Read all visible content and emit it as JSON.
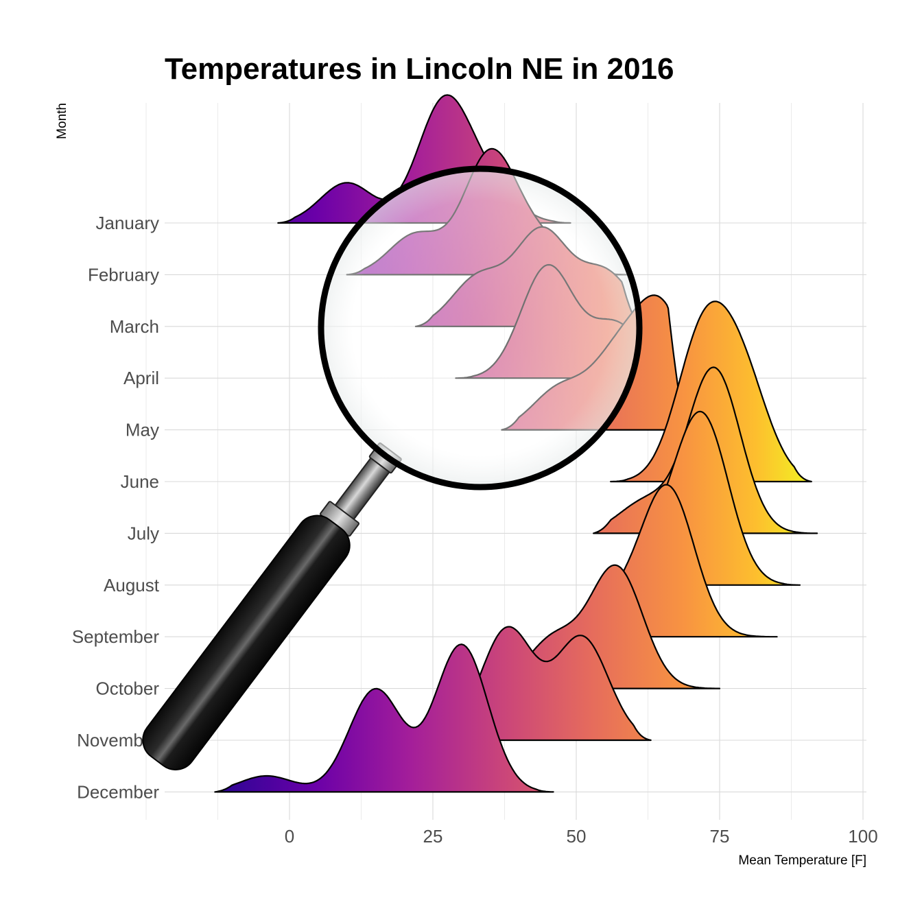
{
  "chart_data": {
    "type": "ridgeline",
    "title": "Temperatures in Lincoln NE in 2016",
    "xlabel": "Mean Temperature [F]",
    "ylabel": "Month",
    "xlim": [
      -25,
      100
    ],
    "x_ticks": [
      0,
      25,
      50,
      75,
      100
    ],
    "grid": true,
    "fill": "plasma gradient by temperature",
    "colors": {
      "low": "#2c0594",
      "mid": "#b12a90",
      "warm": "#e16462",
      "high": "#fcce25",
      "outline": "#000000"
    },
    "categories": [
      "January",
      "February",
      "March",
      "April",
      "May",
      "June",
      "July",
      "August",
      "September",
      "October",
      "November",
      "December"
    ],
    "series": [
      {
        "name": "January",
        "range": [
          -2,
          49
        ],
        "peaks": [
          {
            "x": 10,
            "h": 0.45
          },
          {
            "x": 27,
            "h": 1.35
          },
          {
            "x": 35,
            "h": 0.35
          }
        ]
      },
      {
        "name": "February",
        "range": [
          10,
          59
        ],
        "peaks": [
          {
            "x": 22,
            "h": 0.45
          },
          {
            "x": 35,
            "h": 1.35
          },
          {
            "x": 44,
            "h": 0.35
          }
        ]
      },
      {
        "name": "March",
        "range": [
          22,
          61
        ],
        "peaks": [
          {
            "x": 33,
            "h": 0.55
          },
          {
            "x": 44,
            "h": 1.05
          },
          {
            "x": 55,
            "h": 0.6
          }
        ]
      },
      {
        "name": "April",
        "range": [
          29,
          62
        ],
        "peaks": [
          {
            "x": 45,
            "h": 1.25
          },
          {
            "x": 57,
            "h": 0.6
          }
        ]
      },
      {
        "name": "May",
        "range": [
          37,
          69
        ],
        "peaks": [
          {
            "x": 47,
            "h": 0.45
          },
          {
            "x": 57,
            "h": 0.75
          },
          {
            "x": 65,
            "h": 1.3
          }
        ]
      },
      {
        "name": "June",
        "range": [
          56,
          91
        ],
        "peaks": [
          {
            "x": 72,
            "h": 1.55
          },
          {
            "x": 79,
            "h": 1.1
          }
        ]
      },
      {
        "name": "July",
        "range": [
          53,
          92
        ],
        "peaks": [
          {
            "x": 62,
            "h": 0.35
          },
          {
            "x": 74,
            "h": 1.85
          }
        ]
      },
      {
        "name": "August",
        "range": [
          58,
          89
        ],
        "peaks": [
          {
            "x": 64,
            "h": 0.4
          },
          {
            "x": 72,
            "h": 1.85
          }
        ]
      },
      {
        "name": "September",
        "range": [
          51,
          85
        ],
        "peaks": [
          {
            "x": 57,
            "h": 0.35
          },
          {
            "x": 66,
            "h": 1.65
          }
        ]
      },
      {
        "name": "October",
        "range": [
          39,
          75
        ],
        "peaks": [
          {
            "x": 46,
            "h": 0.55
          },
          {
            "x": 57,
            "h": 1.35
          }
        ]
      },
      {
        "name": "November",
        "range": [
          26,
          63
        ],
        "peaks": [
          {
            "x": 38,
            "h": 1.25
          },
          {
            "x": 51,
            "h": 1.15
          }
        ]
      },
      {
        "name": "December",
        "range": [
          -13,
          46
        ],
        "peaks": [
          {
            "x": -4,
            "h": 0.18
          },
          {
            "x": 15,
            "h": 1.15
          },
          {
            "x": 30,
            "h": 1.65
          }
        ]
      }
    ]
  }
}
